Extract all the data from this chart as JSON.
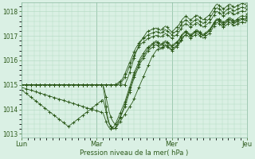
{
  "title": "",
  "xlabel": "Pression niveau de la mer( hPa )",
  "ylabel": "",
  "bg_color": "#daf0e4",
  "grid_color": "#b0d8c0",
  "line_color": "#2d5a1b",
  "marker_color": "#2d5a1b",
  "ylim": [
    1012.85,
    1018.35
  ],
  "yticks": [
    1013,
    1014,
    1015,
    1016,
    1017,
    1018
  ],
  "day_labels": [
    "Lun",
    "Mar",
    "Mer",
    "Jeu"
  ],
  "day_positions": [
    0,
    48,
    96,
    144
  ],
  "num_points": 145,
  "series": [
    [
      1014.8,
      1014.75,
      1014.7,
      1014.65,
      1014.6,
      1014.55,
      1014.5,
      1014.45,
      1014.4,
      1014.35,
      1014.3,
      1014.25,
      1014.2,
      1014.15,
      1014.1,
      1014.05,
      1014.0,
      1013.95,
      1013.9,
      1013.85,
      1013.8,
      1013.75,
      1013.7,
      1013.65,
      1013.6,
      1013.55,
      1013.5,
      1013.45,
      1013.4,
      1013.35,
      1013.3,
      1013.35,
      1013.4,
      1013.45,
      1013.5,
      1013.55,
      1013.6,
      1013.65,
      1013.7,
      1013.75,
      1013.8,
      1013.85,
      1013.9,
      1013.95,
      1014.0,
      1014.05,
      1014.1,
      1014.15,
      1014.2,
      1014.25,
      1014.3,
      1014.35,
      1014.4,
      1014.2,
      1013.9,
      1013.6,
      1013.4,
      1013.3,
      1013.25,
      1013.2,
      1013.25,
      1013.3,
      1013.4,
      1013.5,
      1013.6,
      1013.7,
      1013.8,
      1013.9,
      1014.0,
      1014.1,
      1014.2,
      1014.3,
      1014.45,
      1014.6,
      1014.75,
      1014.9,
      1015.05,
      1015.2,
      1015.35,
      1015.5,
      1015.65,
      1015.8,
      1015.95,
      1016.1,
      1016.2,
      1016.3,
      1016.4,
      1016.45,
      1016.5,
      1016.45,
      1016.5,
      1016.55,
      1016.6,
      1016.55,
      1016.5,
      1016.45,
      1016.4,
      1016.45,
      1016.5,
      1016.55,
      1016.6,
      1016.7,
      1016.8,
      1016.9,
      1017.0,
      1017.05,
      1017.1,
      1017.05,
      1017.0,
      1017.05,
      1017.1,
      1017.15,
      1017.2,
      1017.15,
      1017.1,
      1017.05,
      1017.0,
      1017.05,
      1017.1,
      1017.15,
      1017.2,
      1017.3,
      1017.4,
      1017.5,
      1017.6,
      1017.65,
      1017.7,
      1017.65,
      1017.6,
      1017.55,
      1017.6,
      1017.65,
      1017.7,
      1017.75,
      1017.7,
      1017.65,
      1017.6,
      1017.65,
      1017.7,
      1017.75,
      1017.8,
      1017.82,
      1017.8,
      1017.78,
      1017.9
    ],
    [
      1014.9,
      1014.88,
      1014.86,
      1014.84,
      1014.82,
      1014.8,
      1014.78,
      1014.76,
      1014.74,
      1014.72,
      1014.7,
      1014.68,
      1014.66,
      1014.64,
      1014.62,
      1014.6,
      1014.58,
      1014.56,
      1014.54,
      1014.52,
      1014.5,
      1014.48,
      1014.46,
      1014.44,
      1014.42,
      1014.4,
      1014.38,
      1014.36,
      1014.34,
      1014.32,
      1014.3,
      1014.28,
      1014.26,
      1014.24,
      1014.22,
      1014.2,
      1014.18,
      1014.16,
      1014.14,
      1014.12,
      1014.1,
      1014.08,
      1014.06,
      1014.04,
      1014.02,
      1014.0,
      1013.98,
      1013.96,
      1013.94,
      1013.92,
      1013.9,
      1013.88,
      1013.86,
      1013.7,
      1013.5,
      1013.35,
      1013.25,
      1013.2,
      1013.22,
      1013.3,
      1013.4,
      1013.55,
      1013.7,
      1013.85,
      1014.0,
      1014.15,
      1014.3,
      1014.5,
      1014.7,
      1014.9,
      1015.1,
      1015.3,
      1015.5,
      1015.65,
      1015.8,
      1015.95,
      1016.1,
      1016.2,
      1016.3,
      1016.4,
      1016.5,
      1016.55,
      1016.6,
      1016.65,
      1016.7,
      1016.75,
      1016.8,
      1016.75,
      1016.7,
      1016.65,
      1016.7,
      1016.75,
      1016.8,
      1016.75,
      1016.7,
      1016.65,
      1016.6,
      1016.65,
      1016.7,
      1016.75,
      1016.8,
      1016.9,
      1017.0,
      1017.1,
      1017.15,
      1017.2,
      1017.15,
      1017.1,
      1017.05,
      1017.1,
      1017.15,
      1017.2,
      1017.25,
      1017.2,
      1017.15,
      1017.1,
      1017.05,
      1017.1,
      1017.15,
      1017.2,
      1017.25,
      1017.35,
      1017.45,
      1017.55,
      1017.65,
      1017.7,
      1017.65,
      1017.6,
      1017.55,
      1017.5,
      1017.55,
      1017.6,
      1017.65,
      1017.7,
      1017.65,
      1017.6,
      1017.55,
      1017.6,
      1017.65,
      1017.68,
      1017.7,
      1017.72,
      1017.7,
      1017.68,
      1017.8
    ],
    [
      1015.0,
      1015.0,
      1015.0,
      1015.0,
      1015.0,
      1015.0,
      1015.0,
      1015.0,
      1015.0,
      1015.0,
      1015.0,
      1015.0,
      1015.0,
      1015.0,
      1015.0,
      1015.0,
      1015.0,
      1015.0,
      1015.0,
      1015.0,
      1015.0,
      1015.0,
      1015.0,
      1015.0,
      1015.0,
      1015.0,
      1015.0,
      1015.0,
      1015.0,
      1015.0,
      1015.0,
      1015.0,
      1015.0,
      1015.0,
      1015.0,
      1015.0,
      1015.0,
      1015.0,
      1015.0,
      1015.0,
      1015.0,
      1015.0,
      1015.0,
      1015.0,
      1015.0,
      1015.0,
      1015.0,
      1015.0,
      1015.0,
      1015.0,
      1015.0,
      1015.0,
      1015.0,
      1015.0,
      1015.0,
      1015.0,
      1015.0,
      1015.0,
      1015.0,
      1015.0,
      1015.0,
      1015.0,
      1015.05,
      1015.1,
      1015.15,
      1015.2,
      1015.3,
      1015.45,
      1015.6,
      1015.75,
      1015.9,
      1016.05,
      1016.2,
      1016.35,
      1016.45,
      1016.55,
      1016.65,
      1016.7,
      1016.75,
      1016.8,
      1016.85,
      1016.9,
      1016.92,
      1016.95,
      1016.97,
      1017.0,
      1017.02,
      1017.0,
      1016.98,
      1016.95,
      1017.0,
      1017.05,
      1017.1,
      1017.05,
      1017.0,
      1016.95,
      1016.9,
      1016.95,
      1017.0,
      1017.05,
      1017.1,
      1017.2,
      1017.3,
      1017.4,
      1017.45,
      1017.5,
      1017.45,
      1017.4,
      1017.35,
      1017.4,
      1017.45,
      1017.5,
      1017.55,
      1017.5,
      1017.45,
      1017.4,
      1017.35,
      1017.4,
      1017.45,
      1017.5,
      1017.55,
      1017.65,
      1017.75,
      1017.85,
      1017.95,
      1018.0,
      1017.95,
      1017.9,
      1017.85,
      1017.8,
      1017.85,
      1017.9,
      1017.95,
      1018.0,
      1017.95,
      1017.9,
      1017.85,
      1017.9,
      1017.95,
      1017.98,
      1018.0,
      1018.02,
      1018.0,
      1017.98,
      1018.1
    ],
    [
      1015.0,
      1015.0,
      1015.0,
      1015.0,
      1015.0,
      1015.0,
      1015.0,
      1015.0,
      1015.0,
      1015.0,
      1015.0,
      1015.0,
      1015.0,
      1015.0,
      1015.0,
      1015.0,
      1015.0,
      1015.0,
      1015.0,
      1015.0,
      1015.0,
      1015.0,
      1015.0,
      1015.0,
      1015.0,
      1015.0,
      1015.0,
      1015.0,
      1015.0,
      1015.0,
      1015.0,
      1015.0,
      1015.0,
      1015.0,
      1015.0,
      1015.0,
      1015.0,
      1015.0,
      1015.0,
      1015.0,
      1015.0,
      1015.0,
      1015.0,
      1015.0,
      1015.0,
      1015.0,
      1015.0,
      1015.0,
      1015.0,
      1015.0,
      1015.0,
      1015.0,
      1015.0,
      1014.8,
      1014.5,
      1014.2,
      1013.9,
      1013.7,
      1013.55,
      1013.45,
      1013.4,
      1013.45,
      1013.55,
      1013.7,
      1013.85,
      1014.0,
      1014.2,
      1014.4,
      1014.6,
      1014.8,
      1015.0,
      1015.2,
      1015.4,
      1015.55,
      1015.7,
      1015.85,
      1016.0,
      1016.1,
      1016.2,
      1016.3,
      1016.4,
      1016.5,
      1016.55,
      1016.6,
      1016.65,
      1016.7,
      1016.75,
      1016.7,
      1016.65,
      1016.6,
      1016.65,
      1016.7,
      1016.75,
      1016.7,
      1016.65,
      1016.6,
      1016.55,
      1016.6,
      1016.65,
      1016.7,
      1016.75,
      1016.85,
      1016.95,
      1017.05,
      1017.1,
      1017.15,
      1017.1,
      1017.05,
      1017.0,
      1017.05,
      1017.1,
      1017.15,
      1017.2,
      1017.15,
      1017.1,
      1017.05,
      1017.0,
      1017.05,
      1017.1,
      1017.15,
      1017.2,
      1017.3,
      1017.4,
      1017.5,
      1017.6,
      1017.65,
      1017.6,
      1017.55,
      1017.5,
      1017.45,
      1017.5,
      1017.55,
      1017.6,
      1017.65,
      1017.6,
      1017.55,
      1017.5,
      1017.55,
      1017.6,
      1017.62,
      1017.65,
      1017.67,
      1017.65,
      1017.62,
      1017.75
    ],
    [
      1015.0,
      1015.0,
      1015.0,
      1015.0,
      1015.0,
      1015.0,
      1015.0,
      1015.0,
      1015.0,
      1015.0,
      1015.0,
      1015.0,
      1015.0,
      1015.0,
      1015.0,
      1015.0,
      1015.0,
      1015.0,
      1015.0,
      1015.0,
      1015.0,
      1015.0,
      1015.0,
      1015.0,
      1015.0,
      1015.0,
      1015.0,
      1015.0,
      1015.0,
      1015.0,
      1015.0,
      1015.0,
      1015.0,
      1015.0,
      1015.0,
      1015.0,
      1015.0,
      1015.0,
      1015.0,
      1015.0,
      1015.0,
      1015.0,
      1015.0,
      1015.0,
      1015.0,
      1015.0,
      1015.0,
      1015.0,
      1015.0,
      1015.0,
      1015.0,
      1015.0,
      1015.0,
      1014.6,
      1014.1,
      1013.7,
      1013.45,
      1013.3,
      1013.25,
      1013.2,
      1013.25,
      1013.35,
      1013.5,
      1013.65,
      1013.8,
      1013.95,
      1014.1,
      1014.3,
      1014.5,
      1014.7,
      1014.9,
      1015.1,
      1015.3,
      1015.45,
      1015.6,
      1015.75,
      1015.9,
      1016.0,
      1016.1,
      1016.2,
      1016.3,
      1016.4,
      1016.45,
      1016.5,
      1016.55,
      1016.6,
      1016.65,
      1016.6,
      1016.55,
      1016.5,
      1016.55,
      1016.6,
      1016.65,
      1016.6,
      1016.55,
      1016.5,
      1016.45,
      1016.5,
      1016.55,
      1016.6,
      1016.65,
      1016.75,
      1016.85,
      1016.95,
      1017.0,
      1017.05,
      1017.0,
      1016.95,
      1016.9,
      1016.95,
      1017.0,
      1017.05,
      1017.1,
      1017.05,
      1017.0,
      1016.95,
      1016.9,
      1016.95,
      1017.0,
      1017.05,
      1017.1,
      1017.2,
      1017.3,
      1017.4,
      1017.5,
      1017.55,
      1017.5,
      1017.45,
      1017.4,
      1017.35,
      1017.4,
      1017.45,
      1017.5,
      1017.55,
      1017.5,
      1017.45,
      1017.4,
      1017.45,
      1017.5,
      1017.52,
      1017.55,
      1017.57,
      1017.55,
      1017.52,
      1017.65
    ],
    [
      1015.0,
      1015.0,
      1015.0,
      1015.0,
      1015.0,
      1015.0,
      1015.0,
      1015.0,
      1015.0,
      1015.0,
      1015.0,
      1015.0,
      1015.0,
      1015.0,
      1015.0,
      1015.0,
      1015.0,
      1015.0,
      1015.0,
      1015.0,
      1015.0,
      1015.0,
      1015.0,
      1015.0,
      1015.0,
      1015.0,
      1015.0,
      1015.0,
      1015.0,
      1015.0,
      1015.0,
      1015.0,
      1015.0,
      1015.0,
      1015.0,
      1015.0,
      1015.0,
      1015.0,
      1015.0,
      1015.0,
      1015.0,
      1015.0,
      1015.0,
      1015.0,
      1015.0,
      1015.0,
      1015.0,
      1015.0,
      1015.0,
      1015.0,
      1015.0,
      1015.0,
      1015.0,
      1015.0,
      1015.0,
      1015.0,
      1015.0,
      1015.0,
      1015.0,
      1015.0,
      1015.02,
      1015.05,
      1015.1,
      1015.15,
      1015.2,
      1015.3,
      1015.45,
      1015.6,
      1015.75,
      1015.9,
      1016.05,
      1016.2,
      1016.35,
      1016.5,
      1016.6,
      1016.7,
      1016.8,
      1016.85,
      1016.9,
      1016.95,
      1017.0,
      1017.05,
      1017.08,
      1017.1,
      1017.12,
      1017.15,
      1017.18,
      1017.15,
      1017.12,
      1017.1,
      1017.15,
      1017.2,
      1017.25,
      1017.2,
      1017.15,
      1017.1,
      1017.05,
      1017.1,
      1017.15,
      1017.2,
      1017.25,
      1017.35,
      1017.45,
      1017.55,
      1017.6,
      1017.65,
      1017.6,
      1017.55,
      1017.5,
      1017.55,
      1017.6,
      1017.65,
      1017.7,
      1017.65,
      1017.6,
      1017.55,
      1017.5,
      1017.55,
      1017.6,
      1017.65,
      1017.7,
      1017.8,
      1017.9,
      1018.0,
      1018.1,
      1018.15,
      1018.1,
      1018.05,
      1018.0,
      1017.95,
      1018.0,
      1018.05,
      1018.1,
      1018.15,
      1018.1,
      1018.05,
      1018.0,
      1018.05,
      1018.1,
      1018.12,
      1018.15,
      1018.17,
      1018.15,
      1018.12,
      1018.25
    ],
    [
      1015.0,
      1015.0,
      1015.0,
      1015.0,
      1015.0,
      1015.0,
      1015.0,
      1015.0,
      1015.0,
      1015.0,
      1015.0,
      1015.0,
      1015.0,
      1015.0,
      1015.0,
      1015.0,
      1015.0,
      1015.0,
      1015.0,
      1015.0,
      1015.0,
      1015.0,
      1015.0,
      1015.0,
      1015.0,
      1015.0,
      1015.0,
      1015.0,
      1015.0,
      1015.0,
      1015.0,
      1015.0,
      1015.0,
      1015.0,
      1015.0,
      1015.0,
      1015.0,
      1015.0,
      1015.0,
      1015.0,
      1015.0,
      1015.0,
      1015.0,
      1015.0,
      1015.0,
      1015.0,
      1015.0,
      1015.0,
      1015.0,
      1015.0,
      1015.0,
      1015.0,
      1015.0,
      1015.0,
      1015.0,
      1015.0,
      1015.0,
      1015.0,
      1015.0,
      1015.0,
      1015.0,
      1015.0,
      1015.0,
      1015.0,
      1015.0,
      1015.0,
      1015.0,
      1015.15,
      1015.3,
      1015.5,
      1015.7,
      1015.9,
      1016.1,
      1016.3,
      1016.45,
      1016.6,
      1016.75,
      1016.85,
      1016.95,
      1017.05,
      1017.15,
      1017.2,
      1017.22,
      1017.25,
      1017.28,
      1017.3,
      1017.32,
      1017.28,
      1017.25,
      1017.22,
      1017.28,
      1017.35,
      1017.4,
      1017.35,
      1017.28,
      1017.22,
      1017.15,
      1017.22,
      1017.28,
      1017.35,
      1017.4,
      1017.5,
      1017.6,
      1017.7,
      1017.75,
      1017.8,
      1017.75,
      1017.7,
      1017.65,
      1017.7,
      1017.75,
      1017.8,
      1017.85,
      1017.8,
      1017.75,
      1017.7,
      1017.65,
      1017.7,
      1017.75,
      1017.8,
      1017.85,
      1017.95,
      1018.05,
      1018.15,
      1018.25,
      1018.3,
      1018.25,
      1018.2,
      1018.15,
      1018.1,
      1018.15,
      1018.2,
      1018.25,
      1018.3,
      1018.25,
      1018.2,
      1018.15,
      1018.2,
      1018.25,
      1018.27,
      1018.3,
      1018.32,
      1018.3,
      1018.27,
      1018.4
    ]
  ]
}
